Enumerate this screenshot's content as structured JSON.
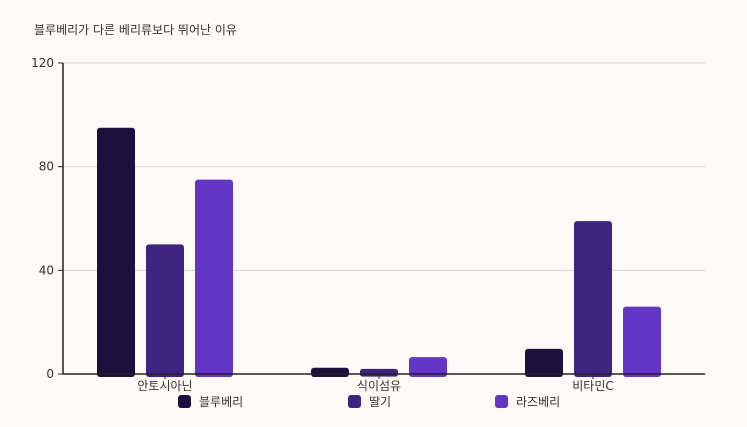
{
  "chart_data": {
    "type": "bar",
    "title": "블루베리가 다른 베리류보다 뛰어난 이유",
    "categories": [
      "안토시아닌",
      "식이섬유",
      "비타민C"
    ],
    "series": [
      {
        "name": "블루베리",
        "values": [
          95,
          2.4,
          9.7
        ],
        "color": "#1c103d"
      },
      {
        "name": "딸기",
        "values": [
          50,
          2,
          59
        ],
        "color": "#3f2381"
      },
      {
        "name": "라즈베리",
        "values": [
          75,
          6.5,
          26
        ],
        "color": "#6336c6"
      }
    ],
    "xlabel": "",
    "ylabel": "",
    "ylim": [
      0,
      120
    ],
    "yticks": [
      "0",
      "40",
      "80",
      "120"
    ],
    "grid": true,
    "legend_position": "bottom"
  }
}
